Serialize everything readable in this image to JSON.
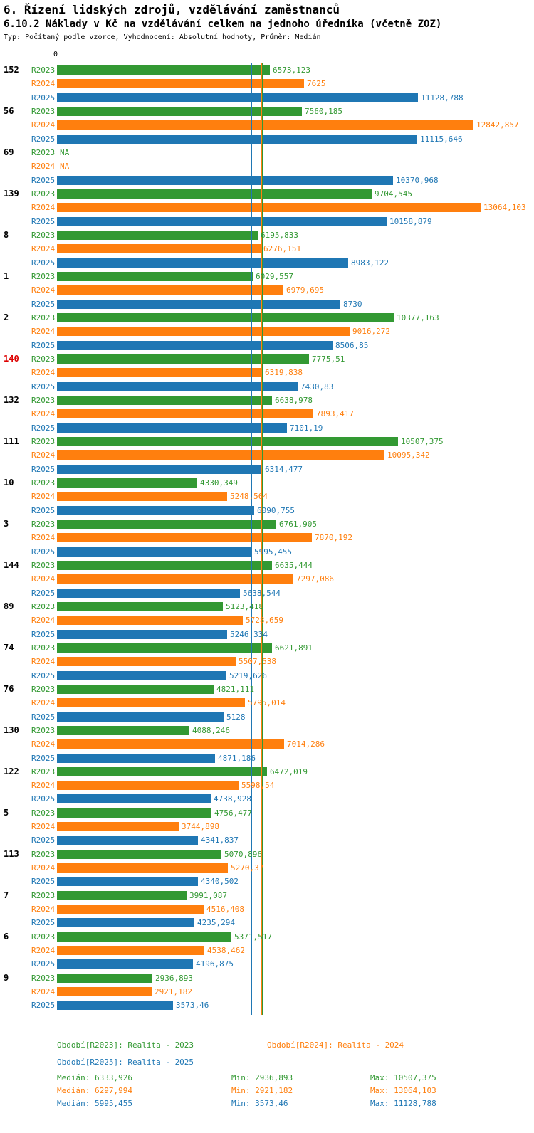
{
  "header": {
    "title": "6. Řízení lidských zdrojů, vzdělávání zaměstnanců",
    "subtitle": "6.10.2 Náklady v Kč na vzdělávání celkem na jednoho úředníka (včetně ZOZ)",
    "meta": "Typ: Počítaný podle vzorce, Vyhodnocení: Absolutní hodnoty, Průměr: Medián"
  },
  "colors": {
    "r2023": "#339933",
    "r2024": "#FF7F0E",
    "r2025": "#1F77B4",
    "highlight_id": "#DD0000",
    "axis": "#000000"
  },
  "chart_data": {
    "type": "bar",
    "orientation": "horizontal",
    "origin_label": "0",
    "x_max": 13064.103,
    "grid": false,
    "series": [
      "R2023",
      "R2024",
      "R2025"
    ],
    "groups": [
      {
        "id": "152",
        "highlight": false,
        "values": [
          6573.123,
          7625,
          11128.788
        ],
        "labels": [
          "6573,123",
          "7625",
          "11128,788"
        ]
      },
      {
        "id": "56",
        "highlight": false,
        "values": [
          7560.185,
          12842.857,
          11115.646
        ],
        "labels": [
          "7560,185",
          "12842,857",
          "11115,646"
        ]
      },
      {
        "id": "69",
        "highlight": false,
        "values": [
          null,
          null,
          10370.968
        ],
        "labels": [
          "NA",
          "NA",
          "10370,968"
        ]
      },
      {
        "id": "139",
        "highlight": false,
        "values": [
          9704.545,
          13064.103,
          10158.879
        ],
        "labels": [
          "9704,545",
          "13064,103",
          "10158,879"
        ]
      },
      {
        "id": "8",
        "highlight": false,
        "values": [
          6195.833,
          6276.151,
          8983.122
        ],
        "labels": [
          "6195,833",
          "6276,151",
          "8983,122"
        ]
      },
      {
        "id": "1",
        "highlight": false,
        "values": [
          6029.557,
          6979.695,
          8730
        ],
        "labels": [
          "6029,557",
          "6979,695",
          "8730"
        ]
      },
      {
        "id": "2",
        "highlight": false,
        "values": [
          10377.163,
          9016.272,
          8506.85
        ],
        "labels": [
          "10377,163",
          "9016,272",
          "8506,85"
        ]
      },
      {
        "id": "140",
        "highlight": true,
        "values": [
          7775.51,
          6319.838,
          7430.83
        ],
        "labels": [
          "7775,51",
          "6319,838",
          "7430,83"
        ]
      },
      {
        "id": "132",
        "highlight": false,
        "values": [
          6638.978,
          7893.417,
          7101.19
        ],
        "labels": [
          "6638,978",
          "7893,417",
          "7101,19"
        ]
      },
      {
        "id": "111",
        "highlight": false,
        "values": [
          10507.375,
          10095.342,
          6314.477
        ],
        "labels": [
          "10507,375",
          "10095,342",
          "6314,477"
        ]
      },
      {
        "id": "10",
        "highlight": false,
        "values": [
          4330.349,
          5248.564,
          6090.755
        ],
        "labels": [
          "4330,349",
          "5248,564",
          "6090,755"
        ]
      },
      {
        "id": "3",
        "highlight": false,
        "values": [
          6761.905,
          7870.192,
          5995.455
        ],
        "labels": [
          "6761,905",
          "7870,192",
          "5995,455"
        ]
      },
      {
        "id": "144",
        "highlight": false,
        "values": [
          6635.444,
          7297.086,
          5638.544
        ],
        "labels": [
          "6635,444",
          "7297,086",
          "5638,544"
        ]
      },
      {
        "id": "89",
        "highlight": false,
        "values": [
          5123.418,
          5728.659,
          5246.334
        ],
        "labels": [
          "5123,418",
          "5728,659",
          "5246,334"
        ]
      },
      {
        "id": "74",
        "highlight": false,
        "values": [
          6621.891,
          5507.538,
          5219.626
        ],
        "labels": [
          "6621,891",
          "5507,538",
          "5219,626"
        ]
      },
      {
        "id": "76",
        "highlight": false,
        "values": [
          4821.111,
          5795.014,
          5128
        ],
        "labels": [
          "4821,111",
          "5795,014",
          "5128"
        ]
      },
      {
        "id": "130",
        "highlight": false,
        "values": [
          4088.246,
          7014.286,
          4871.186
        ],
        "labels": [
          "4088,246",
          "7014,286",
          "4871,186"
        ]
      },
      {
        "id": "122",
        "highlight": false,
        "values": [
          6472.019,
          5598.54,
          4738.928
        ],
        "labels": [
          "6472,019",
          "5598,54",
          "4738,928"
        ]
      },
      {
        "id": "5",
        "highlight": false,
        "values": [
          4756.477,
          3744.898,
          4341.837
        ],
        "labels": [
          "4756,477",
          "3744,898",
          "4341,837"
        ]
      },
      {
        "id": "113",
        "highlight": false,
        "values": [
          5070.896,
          5270.37,
          4340.502
        ],
        "labels": [
          "5070,896",
          "5270,37",
          "4340,502"
        ]
      },
      {
        "id": "7",
        "highlight": false,
        "values": [
          3991.087,
          4516.408,
          4235.294
        ],
        "labels": [
          "3991,087",
          "4516,408",
          "4235,294"
        ]
      },
      {
        "id": "6",
        "highlight": false,
        "values": [
          5371.517,
          4538.462,
          4196.875
        ],
        "labels": [
          "5371,517",
          "4538,462",
          "4196,875"
        ]
      },
      {
        "id": "9",
        "highlight": false,
        "values": [
          2936.893,
          2921.182,
          3573.46
        ],
        "labels": [
          "2936,893",
          "2921,182",
          "3573,46"
        ]
      }
    ],
    "medians": {
      "R2023": 6333.926,
      "R2024": 6297.994,
      "R2025": 5995.455
    }
  },
  "legend": {
    "r2023": "Období[R2023]: Realita - 2023",
    "r2024": "Období[R2024]: Realita - 2024",
    "r2025": "Období[R2025]: Realita - 2025"
  },
  "stats": {
    "r2023": {
      "median": "Medián: 6333,926",
      "min": "Min: 2936,893",
      "max": "Max: 10507,375"
    },
    "r2024": {
      "median": "Medián: 6297,994",
      "min": "Min: 2921,182",
      "max": "Max: 13064,103"
    },
    "r2025": {
      "median": "Medián: 5995,455",
      "min": "Min: 3573,46",
      "max": "Max: 11128,788"
    }
  }
}
